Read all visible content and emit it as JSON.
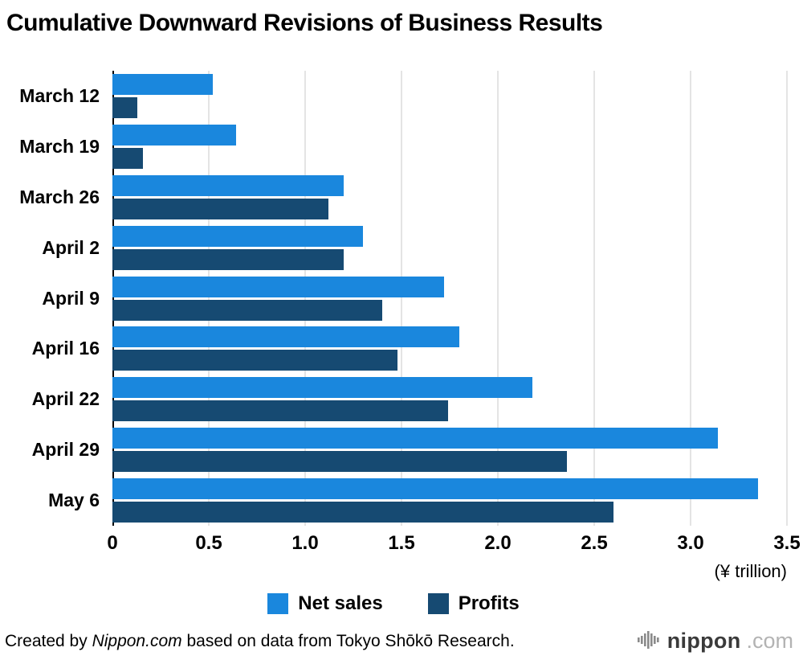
{
  "title": "Cumulative Downward Revisions of Business Results",
  "chart_data": {
    "type": "bar",
    "orientation": "horizontal",
    "title": "Cumulative Downward Revisions of Business Results",
    "categories": [
      "March 12",
      "March 19",
      "March 26",
      "April 2",
      "April 9",
      "April 16",
      "April 22",
      "April 29",
      "May 6"
    ],
    "series": [
      {
        "name": "Net sales",
        "color": "#1a87dd",
        "values": [
          0.52,
          0.64,
          1.2,
          1.3,
          1.72,
          1.8,
          2.18,
          3.14,
          3.35
        ]
      },
      {
        "name": "Profits",
        "color": "#164a72",
        "values": [
          0.13,
          0.16,
          1.12,
          1.2,
          1.4,
          1.48,
          1.74,
          2.36,
          2.6
        ]
      }
    ],
    "xlim": [
      0,
      3.5
    ],
    "x_ticks": [
      "0",
      "0.5",
      "1.0",
      "1.5",
      "2.0",
      "2.5",
      "3.0",
      "3.5"
    ],
    "unit_label": "(¥ trillion)",
    "grid": true,
    "legend_position": "bottom"
  },
  "footer": {
    "credit_prefix": "Created by ",
    "credit_source": "Nippon.com",
    "credit_suffix": " based on data from Tokyo Shōkō Research.",
    "logo_text": "nippon",
    "logo_suffix": ".com"
  },
  "colors": {
    "net_sales": "#1a87dd",
    "profits": "#164a72",
    "gridline": "#c9c9c9",
    "axis": "#000000"
  }
}
